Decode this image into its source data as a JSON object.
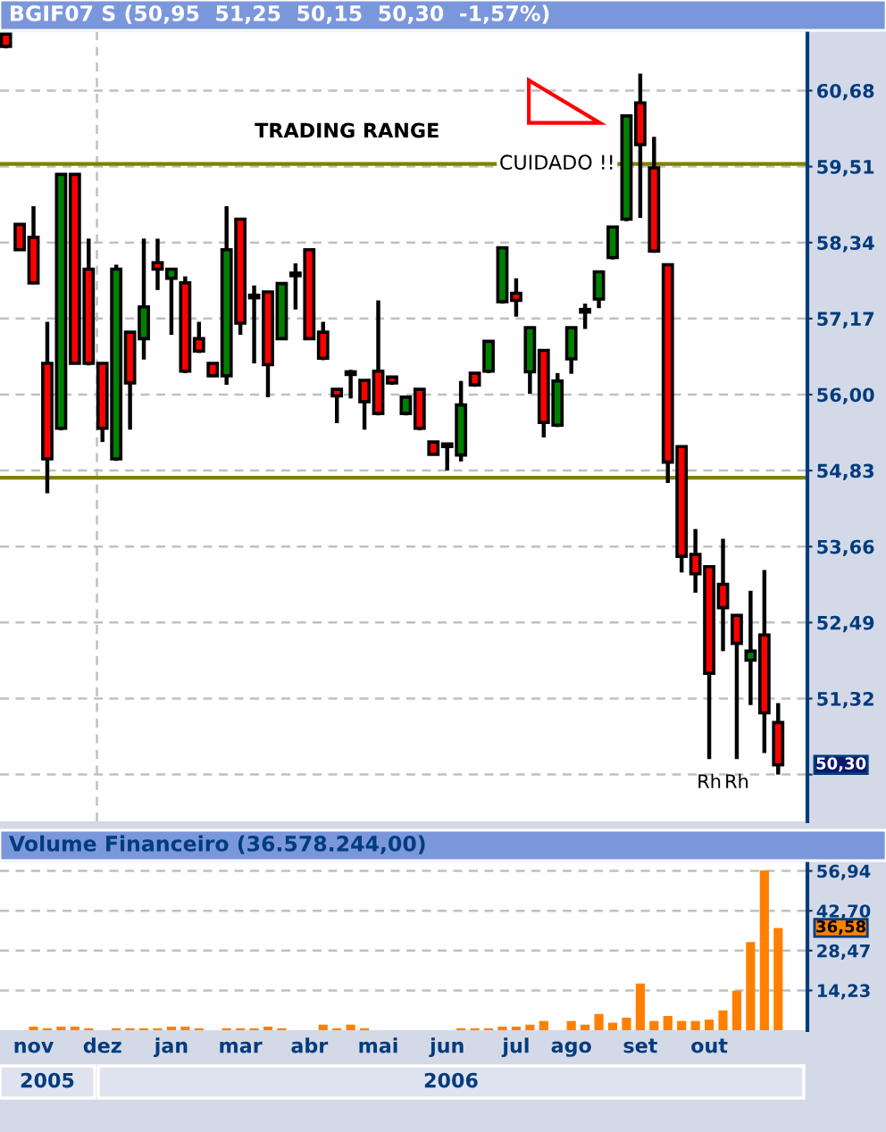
{
  "chart_data": [
    {
      "type": "candlestick",
      "title": "BGIF07 S (50,95  51,25  50,15  50,30  -1,57%)",
      "categories": [
        null,
        null,
        null,
        null,
        null,
        null,
        null,
        null,
        null,
        null,
        null,
        null,
        null,
        null,
        null,
        null,
        null,
        null,
        null,
        null,
        null,
        null,
        null,
        null,
        null,
        null,
        null,
        null,
        null,
        null,
        null,
        null,
        null,
        null,
        null,
        null,
        null,
        null,
        null,
        null,
        null,
        null,
        null,
        null,
        null,
        null,
        null,
        null,
        null,
        null,
        null,
        null,
        null,
        null,
        null,
        null,
        null
      ],
      "ohlc": [
        [
          61.55,
          61.55,
          61.33,
          61.36
        ],
        [
          58.62,
          58.62,
          58.23,
          58.23
        ],
        [
          58.42,
          58.9,
          57.7,
          57.72
        ],
        [
          56.48,
          57.12,
          54.48,
          55.01
        ],
        [
          55.48,
          59.39,
          55.45,
          59.39
        ],
        [
          59.39,
          59.39,
          56.48,
          56.48
        ],
        [
          57.93,
          58.4,
          56.45,
          56.48
        ],
        [
          56.48,
          56.48,
          55.27,
          55.48
        ],
        [
          55.01,
          58.0,
          54.98,
          57.93
        ],
        [
          56.96,
          56.96,
          55.46,
          56.18
        ],
        [
          56.86,
          58.4,
          56.54,
          57.35
        ],
        [
          58.03,
          58.4,
          57.61,
          57.93
        ],
        [
          57.79,
          57.93,
          56.92,
          57.93
        ],
        [
          57.72,
          57.82,
          56.33,
          56.36
        ],
        [
          56.86,
          57.12,
          56.64,
          56.67
        ],
        [
          56.48,
          56.48,
          56.29,
          56.29
        ],
        [
          56.29,
          58.9,
          56.15,
          58.23
        ],
        [
          58.7,
          58.7,
          56.92,
          57.1
        ],
        [
          57.51,
          57.68,
          56.48,
          57.51
        ],
        [
          57.58,
          57.58,
          55.96,
          56.46
        ],
        [
          56.86,
          57.71,
          56.86,
          57.71
        ],
        [
          57.85,
          58.02,
          57.31,
          57.85
        ],
        [
          58.23,
          58.23,
          56.86,
          56.86
        ],
        [
          56.96,
          57.12,
          56.53,
          56.56
        ],
        [
          56.08,
          56.08,
          55.56,
          55.98
        ],
        [
          56.33,
          56.38,
          55.94,
          56.33
        ],
        [
          56.22,
          56.22,
          55.46,
          55.89
        ],
        [
          56.36,
          57.45,
          55.68,
          55.71
        ],
        [
          56.27,
          56.27,
          56.15,
          56.18
        ],
        [
          55.71,
          55.96,
          55.68,
          55.96
        ],
        [
          56.08,
          56.08,
          55.45,
          55.48
        ],
        [
          55.27,
          55.27,
          55.08,
          55.08
        ],
        [
          55.22,
          55.22,
          54.83,
          55.22
        ],
        [
          55.07,
          56.21,
          54.97,
          55.84
        ],
        [
          56.33,
          56.33,
          56.12,
          56.15
        ],
        [
          56.36,
          56.82,
          56.33,
          56.82
        ],
        [
          57.43,
          58.26,
          57.4,
          58.26
        ],
        [
          57.56,
          57.79,
          57.2,
          57.45
        ],
        [
          56.35,
          57.03,
          56.01,
          57.03
        ],
        [
          56.68,
          56.68,
          55.34,
          55.57
        ],
        [
          55.53,
          56.33,
          55.5,
          56.21
        ],
        [
          56.55,
          57.03,
          56.32,
          57.03
        ],
        [
          57.29,
          57.4,
          57.01,
          57.29
        ],
        [
          57.47,
          57.89,
          57.33,
          57.89
        ],
        [
          58.11,
          58.58,
          58.08,
          58.58
        ],
        [
          58.7,
          60.29,
          58.67,
          60.29
        ],
        [
          60.49,
          60.94,
          58.72,
          59.85
        ],
        [
          59.49,
          59.97,
          58.18,
          58.21
        ],
        [
          58.0,
          58.0,
          54.64,
          54.96
        ],
        [
          55.2,
          55.2,
          53.26,
          53.51
        ],
        [
          53.54,
          53.93,
          52.95,
          53.24
        ],
        [
          53.35,
          53.35,
          50.39,
          51.71
        ],
        [
          53.08,
          53.78,
          52.05,
          52.72
        ],
        [
          52.6,
          52.6,
          50.39,
          52.17
        ],
        [
          51.91,
          52.98,
          51.22,
          52.05
        ],
        [
          52.3,
          53.3,
          50.48,
          51.1
        ],
        [
          50.95,
          51.25,
          50.15,
          50.3
        ]
      ],
      "colors": [
        "#ff0000",
        "#ff0000",
        "#ff0000",
        "#ff0000",
        "#008000",
        "#ff0000",
        "#ff0000",
        "#ff0000",
        "#008000",
        "#ff0000",
        "#008000",
        "#ff0000",
        "#008000",
        "#ff0000",
        "#ff0000",
        "#ff0000",
        "#008000",
        "#ff0000",
        "#000000",
        "#ff0000",
        "#008000",
        "#000000",
        "#ff0000",
        "#ff0000",
        "#ff0000",
        "#000000",
        "#ff0000",
        "#ff0000",
        "#ff0000",
        "#008000",
        "#ff0000",
        "#ff0000",
        "#000000",
        "#008000",
        "#ff0000",
        "#008000",
        "#008000",
        "#ff0000",
        "#008000",
        "#ff0000",
        "#008000",
        "#008000",
        "#000000",
        "#008000",
        "#008000",
        "#008000",
        "#ff0000",
        "#ff0000",
        "#ff0000",
        "#ff0000",
        "#ff0000",
        "#ff0000",
        "#ff0000",
        "#ff0000",
        "#008000",
        "#ff0000",
        "#ff0000"
      ],
      "ylim": [
        49.43,
        61.58
      ],
      "yticks": [
        {
          "value": 60.68,
          "label": "60,68"
        },
        {
          "value": 59.51,
          "label": "59,51"
        },
        {
          "value": 58.34,
          "label": "58,34"
        },
        {
          "value": 57.17,
          "label": "57,17"
        },
        {
          "value": 56.0,
          "label": "56,00"
        },
        {
          "value": 54.83,
          "label": "54,83"
        },
        {
          "value": 53.66,
          "label": "53,66"
        },
        {
          "value": 52.49,
          "label": "52,49"
        },
        {
          "value": 51.32,
          "label": "51,32"
        },
        {
          "value": 50.15,
          "label": null
        }
      ],
      "tick_labels": "y",
      "grid": "y",
      "ref_lines": [
        {
          "axis": "y",
          "value": 59.55,
          "label": "CUIDADO !!",
          "color": "#808000",
          "line_style": "solid"
        },
        {
          "axis": "y",
          "value": 54.72,
          "color": "#808000",
          "line_style": "solid"
        }
      ],
      "annotations": [
        "TRADING RANGE",
        "Rh",
        "Rh",
        "50,30"
      ]
    },
    {
      "type": "bar",
      "title": "Volume Financeiro (36.578.244,00)",
      "categories": [
        null,
        null,
        "nov",
        null,
        null,
        null,
        null,
        "dez",
        null,
        null,
        null,
        null,
        "jan",
        null,
        null,
        null,
        null,
        "mar",
        null,
        null,
        null,
        null,
        "abr",
        null,
        null,
        null,
        null,
        "mai",
        null,
        null,
        null,
        null,
        "jun",
        null,
        null,
        null,
        null,
        "jul",
        null,
        null,
        null,
        "ago",
        null,
        null,
        null,
        null,
        "set",
        null,
        null,
        null,
        null,
        "out",
        null,
        null,
        null,
        null,
        null
      ],
      "values": [
        0,
        0,
        1.3,
        0.7,
        1.3,
        1.3,
        0.7,
        0,
        0.7,
        0.7,
        0.7,
        0.7,
        1.3,
        1.3,
        0.7,
        0,
        0.7,
        0.7,
        0.7,
        1.3,
        0.7,
        0,
        0,
        2.0,
        0.7,
        2.0,
        0.7,
        0,
        0,
        0,
        0,
        0,
        0,
        0.7,
        0.7,
        0.7,
        1.3,
        1.3,
        2.0,
        3.3,
        0,
        3.3,
        2.0,
        5.8,
        2.7,
        4.5,
        16.7,
        3.3,
        5.1,
        3.3,
        3.3,
        3.8,
        7.1,
        14.1,
        31.5,
        57.1,
        36.58
      ],
      "color": "#ff8000",
      "ylim": [
        0,
        60
      ],
      "yticks": [
        {
          "value": 14.23,
          "label": "14,23"
        },
        {
          "value": 28.47,
          "label": "28,47"
        },
        {
          "value": 42.7,
          "label": "42,70"
        },
        {
          "value": 56.94,
          "label": "56,94"
        }
      ],
      "grid": "y",
      "annotations": [
        "36,58",
        "2005",
        "2006"
      ]
    }
  ]
}
